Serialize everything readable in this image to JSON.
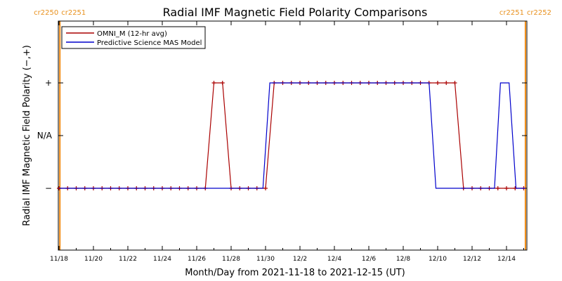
{
  "chart_data": {
    "type": "line",
    "title": "Radial IMF Magnetic Field Polarity Comparisons",
    "xlabel": "Month/Day from 2021-11-18 to 2021-12-15 (UT)",
    "ylabel": "Radial IMF Magnetic Field Polarity (−,+)",
    "x_range_days": [
      0,
      27.2
    ],
    "x_ticks": [
      {
        "day": 0,
        "label": "11/18"
      },
      {
        "day": 2,
        "label": "11/20"
      },
      {
        "day": 4,
        "label": "11/22"
      },
      {
        "day": 6,
        "label": "11/24"
      },
      {
        "day": 8,
        "label": "11/26"
      },
      {
        "day": 10,
        "label": "11/28"
      },
      {
        "day": 12,
        "label": "11/30"
      },
      {
        "day": 14,
        "label": "12/2"
      },
      {
        "day": 16,
        "label": "12/4"
      },
      {
        "day": 18,
        "label": "12/6"
      },
      {
        "day": 20,
        "label": "12/8"
      },
      {
        "day": 22,
        "label": "12/10"
      },
      {
        "day": 24,
        "label": "12/12"
      },
      {
        "day": 26,
        "label": "12/14"
      }
    ],
    "y_ticks": [
      {
        "value": 1,
        "label": "+"
      },
      {
        "value": 0,
        "label": "N/A"
      },
      {
        "value": -1,
        "label": "−"
      }
    ],
    "ylim": [
      -2,
      2
    ],
    "carrington": [
      {
        "day": 0.05,
        "left": "cr2250",
        "right": "cr2251"
      },
      {
        "day": 27.1,
        "left": "cr2251",
        "right": "cr2252"
      }
    ],
    "legend_position": "top-left",
    "series": [
      {
        "name": "OMNI_M (12-hr avg)",
        "color": "#aa0000",
        "markers": true,
        "points": [
          [
            0,
            -1
          ],
          [
            0.5,
            -1
          ],
          [
            1,
            -1
          ],
          [
            1.5,
            -1
          ],
          [
            2,
            -1
          ],
          [
            2.5,
            -1
          ],
          [
            3,
            -1
          ],
          [
            3.5,
            -1
          ],
          [
            4,
            -1
          ],
          [
            4.5,
            -1
          ],
          [
            5,
            -1
          ],
          [
            5.5,
            -1
          ],
          [
            6,
            -1
          ],
          [
            6.5,
            -1
          ],
          [
            7,
            -1
          ],
          [
            7.5,
            -1
          ],
          [
            8,
            -1
          ],
          [
            8.5,
            -1
          ],
          [
            9,
            1
          ],
          [
            9.5,
            1
          ],
          [
            10,
            -1
          ],
          [
            10.5,
            -1
          ],
          [
            11,
            -1
          ],
          [
            11.5,
            -1
          ],
          [
            12,
            -1
          ],
          [
            12.5,
            1
          ],
          [
            13,
            1
          ],
          [
            13.5,
            1
          ],
          [
            14,
            1
          ],
          [
            14.5,
            1
          ],
          [
            15,
            1
          ],
          [
            15.5,
            1
          ],
          [
            16,
            1
          ],
          [
            16.5,
            1
          ],
          [
            17,
            1
          ],
          [
            17.5,
            1
          ],
          [
            18,
            1
          ],
          [
            18.5,
            1
          ],
          [
            19,
            1
          ],
          [
            19.5,
            1
          ],
          [
            20,
            1
          ],
          [
            20.5,
            1
          ],
          [
            21,
            1
          ],
          [
            21.5,
            1
          ],
          [
            22,
            1
          ],
          [
            22.5,
            1
          ],
          [
            23,
            1
          ],
          [
            23.5,
            -1
          ],
          [
            24,
            -1
          ],
          [
            24.5,
            -1
          ],
          [
            25,
            -1
          ],
          [
            25.5,
            -1
          ],
          [
            26,
            -1
          ],
          [
            26.5,
            -1
          ],
          [
            27,
            -1
          ]
        ]
      },
      {
        "name": "Predictive Science MAS Model",
        "color": "#0000cc",
        "markers": false,
        "points": [
          [
            0,
            -1
          ],
          [
            11.85,
            -1
          ],
          [
            12.25,
            1
          ],
          [
            21.5,
            1
          ],
          [
            21.9,
            -1
          ],
          [
            25.3,
            -1
          ],
          [
            25.65,
            1
          ],
          [
            26.15,
            1
          ],
          [
            26.55,
            -1
          ],
          [
            27.1,
            -1
          ]
        ]
      }
    ]
  }
}
